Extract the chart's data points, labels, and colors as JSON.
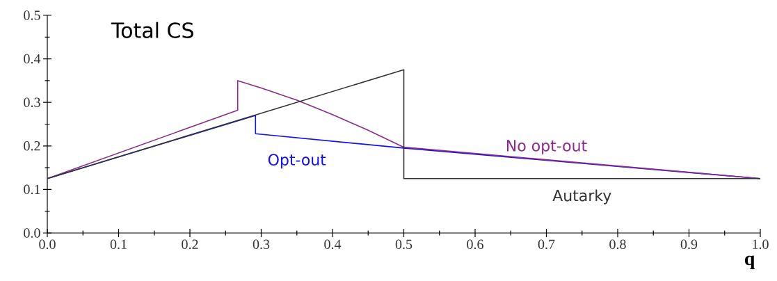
{
  "chart_data": {
    "type": "line",
    "title": "Total CS",
    "xlabel": "q",
    "xlim": [
      0,
      1
    ],
    "ylim": [
      0,
      0.5
    ],
    "xticks": [
      {
        "value": 0,
        "label": "0.0"
      },
      0.1,
      0.2,
      0.3,
      0.4,
      0.5,
      0.6,
      0.7,
      0.8,
      0.9,
      {
        "value": 1,
        "label": "1.0"
      }
    ],
    "yticks": [
      {
        "value": 0,
        "label": "0.0"
      },
      0.1,
      0.2,
      0.3,
      0.4,
      0.5
    ],
    "series": [
      {
        "name": "Opt-out",
        "color": "#1010f0",
        "x": [
          0,
          0.292,
          0.292,
          0.5,
          1.0
        ],
        "values": [
          0.125,
          0.27,
          0.228,
          0.195,
          0.125
        ]
      },
      {
        "name": "No opt-out",
        "color": "#8b2a8b",
        "x": [
          0,
          0.267,
          0.267,
          0.3,
          0.35,
          0.4,
          0.45,
          0.5,
          1.0
        ],
        "values": [
          0.125,
          0.282,
          0.35,
          0.333,
          0.305,
          0.272,
          0.236,
          0.197,
          0.125
        ]
      },
      {
        "name": "Autarky",
        "color": "#333333",
        "x": [
          0,
          0.5,
          0.5,
          1.0
        ],
        "values": [
          0.125,
          0.375,
          0.125,
          0.125
        ]
      }
    ]
  }
}
